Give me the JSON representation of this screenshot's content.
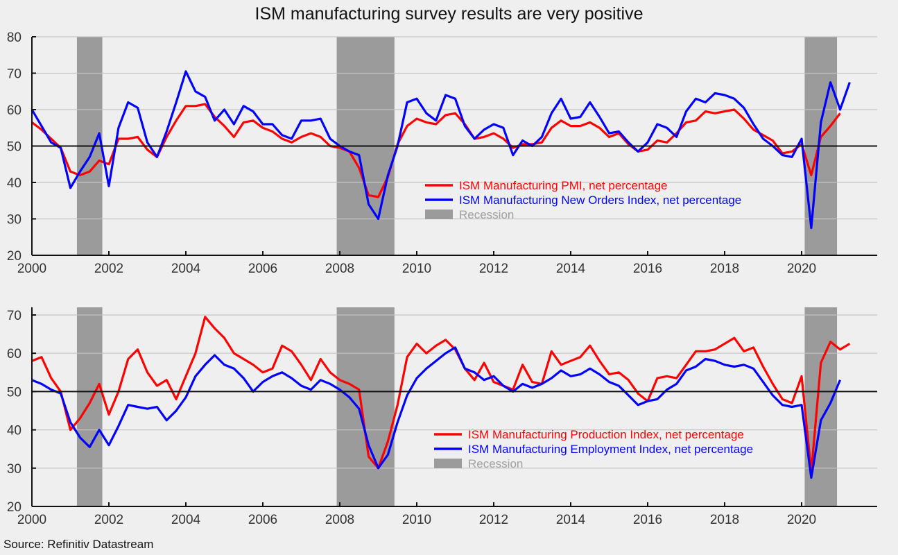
{
  "title": "ISM manufacturing survey results are very positive",
  "source": "Source: Refinitiv Datastream",
  "colors": {
    "red": "#ff0000",
    "blue": "#0000ff",
    "recession": "#9b9b9b",
    "grid": "#c4c4c4",
    "axis": "#111111",
    "background": "#efefef"
  },
  "chart_data": [
    {
      "type": "line",
      "title": "",
      "xlabel": "",
      "ylabel": "",
      "xlim": [
        2000,
        2021.8
      ],
      "ylim": [
        20,
        80
      ],
      "yticks": [
        20,
        30,
        40,
        50,
        60,
        70,
        80
      ],
      "xticks": [
        2000,
        2002,
        2004,
        2006,
        2008,
        2010,
        2012,
        2014,
        2016,
        2018,
        2020
      ],
      "xtick_labels": [
        "2000",
        "2002",
        "2004",
        "2006",
        "2008",
        "2010",
        "2012",
        "2014",
        "2016",
        "2018",
        "2020"
      ],
      "reference_line": 50,
      "grid": true,
      "legend_position": "center-right",
      "recessions": [
        [
          2001.17,
          2001.83
        ],
        [
          2007.92,
          2009.42
        ],
        [
          2020.08,
          2020.92
        ]
      ],
      "x_start": 2000.0,
      "x_step": 0.25,
      "series": [
        {
          "name": "ISM Manufacturing PMI, net percentage",
          "color": "#ff0000",
          "values": [
            56.5,
            54.5,
            52.0,
            49.5,
            43.0,
            42.0,
            43.0,
            46.0,
            45.0,
            52.0,
            52.0,
            52.5,
            49.0,
            47.0,
            52.5,
            57.0,
            61.0,
            61.0,
            61.5,
            58.0,
            55.5,
            52.5,
            56.5,
            57.0,
            55.0,
            54.0,
            52.0,
            51.0,
            52.5,
            53.5,
            52.5,
            50.0,
            49.5,
            48.5,
            44.0,
            36.5,
            36.0,
            41.5,
            50.5,
            55.5,
            57.5,
            56.5,
            56.0,
            58.5,
            59.0,
            56.0,
            52.0,
            52.5,
            53.5,
            52.0,
            49.5,
            50.5,
            50.5,
            51.0,
            55.0,
            57.0,
            55.5,
            55.5,
            56.5,
            55.0,
            52.5,
            53.5,
            50.5,
            48.5,
            49.0,
            51.5,
            51.0,
            53.5,
            56.5,
            57.0,
            59.5,
            59.0,
            59.5,
            60.0,
            57.5,
            54.5,
            53.0,
            51.5,
            48.0,
            48.5,
            50.5,
            42.0,
            52.5,
            55.5,
            59.0
          ]
        },
        {
          "name": "ISM Manufacturing New Orders Index, net percentage",
          "color": "#0000ff",
          "values": [
            60.0,
            55.5,
            51.0,
            49.5,
            38.5,
            43.0,
            47.0,
            53.5,
            39.0,
            55.0,
            62.0,
            60.5,
            51.0,
            47.0,
            54.0,
            62.0,
            70.5,
            65.0,
            63.5,
            57.0,
            60.0,
            56.0,
            61.0,
            59.5,
            56.0,
            56.0,
            53.0,
            52.0,
            57.0,
            57.0,
            57.5,
            52.0,
            50.0,
            48.5,
            47.5,
            34.0,
            30.0,
            42.0,
            50.0,
            62.0,
            63.0,
            59.0,
            57.0,
            64.0,
            63.0,
            55.5,
            52.0,
            54.5,
            56.0,
            55.0,
            47.5,
            51.5,
            50.0,
            52.5,
            59.0,
            63.0,
            57.5,
            58.0,
            62.0,
            58.0,
            53.5,
            54.0,
            51.0,
            48.5,
            51.0,
            56.0,
            55.0,
            52.5,
            59.5,
            63.0,
            62.0,
            64.5,
            64.0,
            63.0,
            60.5,
            56.0,
            52.0,
            50.0,
            47.5,
            47.0,
            52.0,
            27.5,
            56.5,
            67.5,
            60.0,
            67.5
          ]
        }
      ]
    },
    {
      "type": "line",
      "title": "",
      "xlabel": "",
      "ylabel": "",
      "xlim": [
        2000,
        2021.8
      ],
      "ylim": [
        20,
        72
      ],
      "yticks": [
        20,
        30,
        40,
        50,
        60,
        70
      ],
      "xticks": [
        2000,
        2002,
        2004,
        2006,
        2008,
        2010,
        2012,
        2014,
        2016,
        2018,
        2020
      ],
      "xtick_labels": [
        "2000",
        "2002",
        "2004",
        "2006",
        "2008",
        "2010",
        "2012",
        "2014",
        "2016",
        "2018",
        "2020"
      ],
      "reference_line": 50,
      "grid": true,
      "legend_position": "center-right",
      "recessions": [
        [
          2001.17,
          2001.83
        ],
        [
          2007.92,
          2009.42
        ],
        [
          2020.08,
          2020.92
        ]
      ],
      "x_start": 2000.0,
      "x_step": 0.25,
      "series": [
        {
          "name": "ISM Manufacturing Production Index, net percentage",
          "color": "#ff0000",
          "values": [
            58.0,
            59.0,
            53.5,
            50.0,
            40.0,
            43.0,
            47.0,
            52.0,
            44.0,
            50.0,
            58.5,
            61.0,
            55.0,
            51.5,
            53.0,
            48.0,
            54.0,
            60.0,
            69.5,
            66.5,
            64.0,
            60.0,
            58.5,
            57.0,
            55.0,
            56.0,
            62.0,
            60.5,
            57.0,
            53.0,
            58.5,
            55.0,
            53.0,
            52.0,
            50.5,
            33.0,
            30.0,
            37.0,
            46.5,
            59.0,
            62.5,
            60.0,
            62.0,
            63.5,
            61.0,
            56.0,
            53.0,
            57.5,
            52.5,
            51.5,
            50.5,
            57.0,
            52.5,
            52.0,
            60.5,
            57.0,
            58.0,
            59.0,
            62.0,
            58.0,
            54.5,
            55.0,
            53.0,
            49.5,
            47.5,
            53.5,
            54.0,
            53.5,
            57.0,
            60.5,
            60.5,
            61.0,
            62.5,
            64.0,
            60.5,
            61.5,
            56.5,
            52.0,
            48.0,
            47.0,
            54.0,
            29.0,
            57.5,
            63.0,
            61.0,
            62.5
          ]
        },
        {
          "name": "ISM Manufacturing Employment Index, net percentage",
          "color": "#0000ff",
          "values": [
            53.0,
            52.0,
            50.5,
            49.5,
            42.0,
            38.0,
            35.5,
            40.0,
            36.0,
            41.0,
            46.5,
            46.0,
            45.5,
            46.0,
            42.5,
            45.0,
            48.5,
            54.0,
            57.0,
            59.5,
            57.0,
            56.0,
            53.5,
            50.0,
            52.5,
            54.0,
            55.0,
            53.5,
            51.5,
            50.5,
            53.0,
            52.0,
            50.5,
            48.5,
            45.5,
            36.0,
            30.0,
            33.5,
            42.0,
            49.0,
            53.5,
            56.0,
            58.0,
            60.0,
            61.5,
            56.0,
            55.0,
            53.0,
            54.0,
            51.5,
            50.0,
            52.0,
            51.0,
            52.0,
            53.5,
            55.5,
            54.0,
            54.5,
            56.0,
            54.5,
            52.5,
            51.5,
            49.0,
            46.5,
            47.5,
            48.0,
            50.5,
            52.0,
            55.5,
            56.5,
            58.5,
            58.0,
            57.0,
            56.5,
            57.0,
            56.0,
            52.5,
            49.0,
            46.5,
            46.0,
            46.5,
            27.5,
            42.5,
            47.0,
            53.0
          ]
        }
      ]
    }
  ],
  "legends": [
    {
      "items": [
        {
          "label": "ISM Manufacturing PMI, net percentage",
          "kind": "line",
          "color": "#ff0000"
        },
        {
          "label": "ISM Manufacturing New Orders Index, net percentage",
          "kind": "line",
          "color": "#0000ff"
        },
        {
          "label": "Recession",
          "kind": "box",
          "color": "#9b9b9b"
        }
      ]
    },
    {
      "items": [
        {
          "label": "ISM Manufacturing Production Index, net percentage",
          "kind": "line",
          "color": "#ff0000"
        },
        {
          "label": "ISM Manufacturing Employment Index, net percentage",
          "kind": "line",
          "color": "#0000ff"
        },
        {
          "label": "Recession",
          "kind": "box",
          "color": "#9b9b9b"
        }
      ]
    }
  ]
}
